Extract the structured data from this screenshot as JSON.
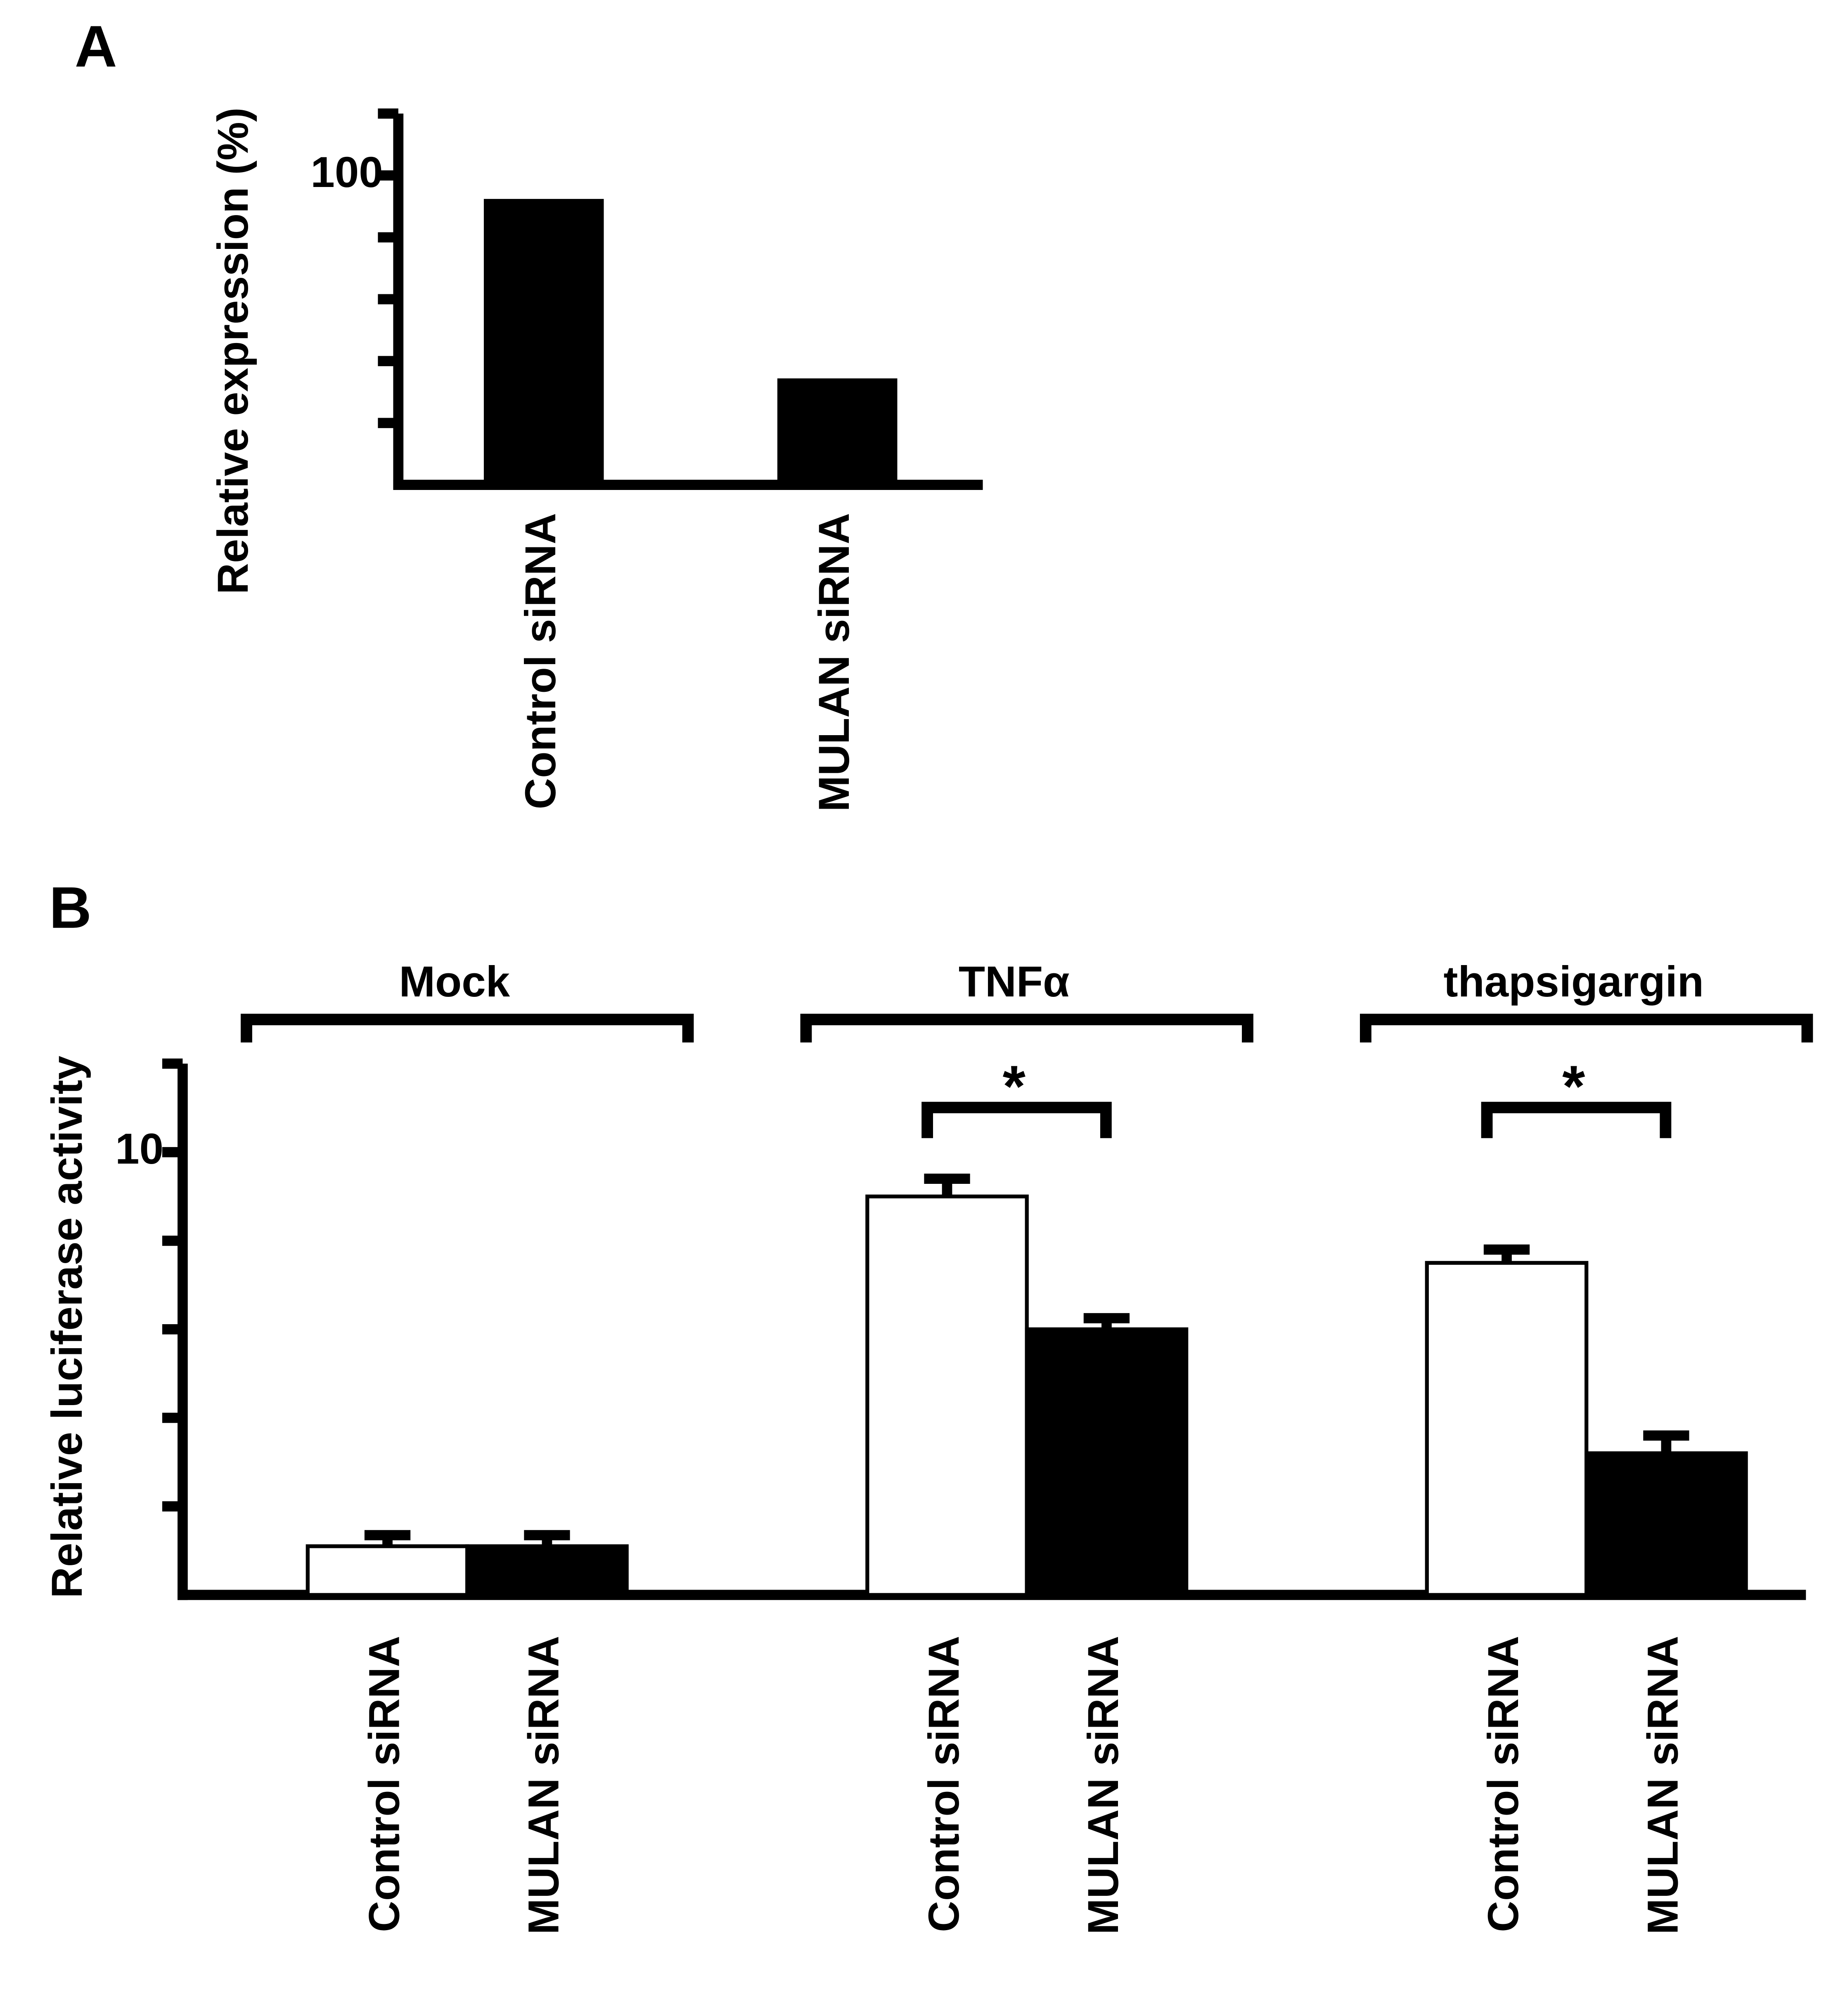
{
  "chart_data": [
    {
      "type": "bar",
      "panel": "A",
      "y_label": "Relative expression (%)",
      "categories": [
        "Control siRNA",
        "MULAN siRNA"
      ],
      "values": [
        92,
        34
      ],
      "color": "#000000",
      "ylim": [
        0,
        120
      ],
      "yticks": [
        100
      ],
      "minor_yticks": [
        20,
        40,
        60,
        80,
        120
      ]
    },
    {
      "type": "grouped_bar",
      "panel": "B",
      "y_label": "Relative luciferase activity",
      "categories": [
        "Mock",
        "TNFα",
        "thapsigargin"
      ],
      "series": [
        {
          "name": "Control siRNA",
          "color": "#ffffff",
          "values": [
            1.1,
            9.0,
            7.5
          ],
          "errors": [
            0.25,
            0.4,
            0.3
          ]
        },
        {
          "name": "MULAN siRNA",
          "color": "#000000",
          "values": [
            1.1,
            6.0,
            3.2
          ],
          "errors": [
            0.25,
            0.25,
            0.4
          ]
        }
      ],
      "ylim": [
        0,
        12
      ],
      "yticks": [
        10
      ],
      "minor_yticks": [
        2,
        4,
        6,
        8,
        12
      ],
      "annotations": [
        {
          "text": "*",
          "category": 1
        },
        {
          "text": "*",
          "category": 2
        }
      ]
    }
  ]
}
